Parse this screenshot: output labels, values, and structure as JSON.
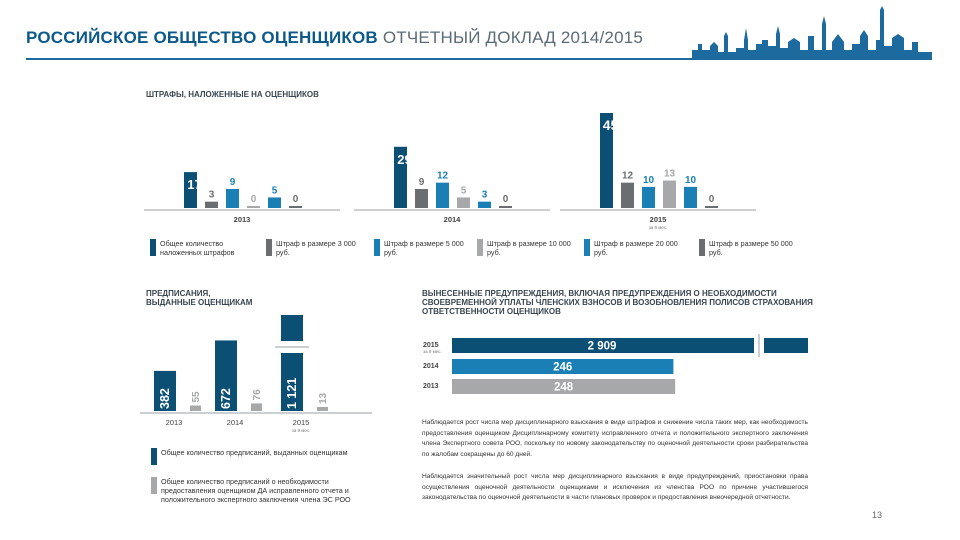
{
  "header": {
    "org": "РОССИЙСКОЕ ОБЩЕСТВО ОЦЕНЩИКОВ",
    "report": "ОТЧЕТНЫЙ ДОКЛАД 2014/2015"
  },
  "colors": {
    "navy": "#0c4f74",
    "mid_blue": "#1a7fb5",
    "dark_gray": "#6b6e71",
    "light_gray": "#a6a8aa",
    "header_line": "#1d6a9e"
  },
  "chart_data": [
    {
      "id": "fines",
      "type": "bar",
      "title": "ШТРАФЫ, НАЛОЖЕННЫЕ НА ОЦЕНЩИКОВ",
      "categories": [
        "2013",
        "2014",
        "2015"
      ],
      "category_notes": [
        "",
        "",
        "за 9 мес."
      ],
      "series": [
        {
          "name": "Общее количество наложенных штрафов",
          "color": "navy",
          "values": [
            17,
            29,
            45
          ]
        },
        {
          "name": "Штраф в размере 3 000 руб.",
          "color": "dark_gray",
          "values": [
            3,
            9,
            12
          ]
        },
        {
          "name": "Штраф в размере 5 000 руб.",
          "color": "mid_blue",
          "values": [
            9,
            12,
            10
          ]
        },
        {
          "name": "Штраф в размере 10 000 руб.",
          "color": "light_gray",
          "values": [
            0,
            5,
            13
          ]
        },
        {
          "name": "Штраф в размере 20 000 руб.",
          "color": "mid_blue",
          "values": [
            5,
            3,
            10
          ]
        },
        {
          "name": "Штраф в размере 50 000 руб.",
          "color": "dark_gray",
          "values": [
            0,
            0,
            0
          ]
        }
      ],
      "ylim": [
        0,
        45
      ]
    },
    {
      "id": "prescriptions",
      "type": "bar",
      "title_lines": [
        "ПРЕДПИСАНИЯ,",
        "ВЫДАННЫЕ ОЦЕНЩИКАМ"
      ],
      "categories": [
        "2013",
        "2014",
        "2015"
      ],
      "category_notes": [
        "",
        "",
        "за 9 мес."
      ],
      "series": [
        {
          "name": "Общее количество предписаний, выданных оценщикам",
          "color": "navy",
          "values": [
            382,
            672,
            1121
          ],
          "labels": [
            "382",
            "672",
            "1 121"
          ]
        },
        {
          "name": "Общее количество предписаний о необходимости предоставления оценщиком ДА исправленного отчета и положительного экспертного заключения члена ЭС РОО",
          "color": "light_gray",
          "values": [
            55,
            76,
            13
          ],
          "labels": [
            "55",
            "76",
            "13"
          ]
        }
      ],
      "axis_break": true
    },
    {
      "id": "warnings",
      "type": "bar",
      "orientation": "horizontal",
      "title_lines": [
        "ВЫНЕСЕННЫЕ ПРЕДУПРЕЖДЕНИЯ, ВКЛЮЧАЯ ПРЕДУПРЕЖДЕНИЯ О НЕОБХОДИМОСТИ",
        "СВОЕВРЕМЕННОЙ УПЛАТЫ ЧЛЕНСКИХ ВЗНОСОВ И ВОЗОБНОВЛЕНИЯ ПОЛИСОВ СТРАХОВАНИЯ",
        "ОТВЕТСТВЕННОСТИ ОЦЕНЩИКОВ"
      ],
      "categories": [
        "2015",
        "2014",
        "2013"
      ],
      "category_notes": [
        "за 9 мес.",
        "",
        ""
      ],
      "values": [
        2909,
        246,
        248
      ],
      "labels": [
        "2 909",
        "246",
        "248"
      ],
      "colors": [
        "navy",
        "mid_blue",
        "light_gray"
      ],
      "axis_break": true
    }
  ],
  "notes": [
    "Наблюдается рост числа мер дисциплинарного взыскания в виде штрафов и снижение числа таких мер, как необходимость предоставления оценщиком Дисциплинарному комитету исправленного отчета и положительного экспертного заключения члена Экспертного совета РОО, поскольку по новому законодательству по оценочной деятельности сроки разбирательства по жалобам сокращены до 60 дней.",
    "Наблюдается значительный рост числа мер дисциплинарного взыскания в виде предупреждений, приостановки права осуществления оценочной деятельности оценщиками и исключения из членства РОО по причине участившегося законодательства по оценочной деятельности в части плановых проверок и предоставления внеочередной отчетности."
  ],
  "page_number": "13"
}
